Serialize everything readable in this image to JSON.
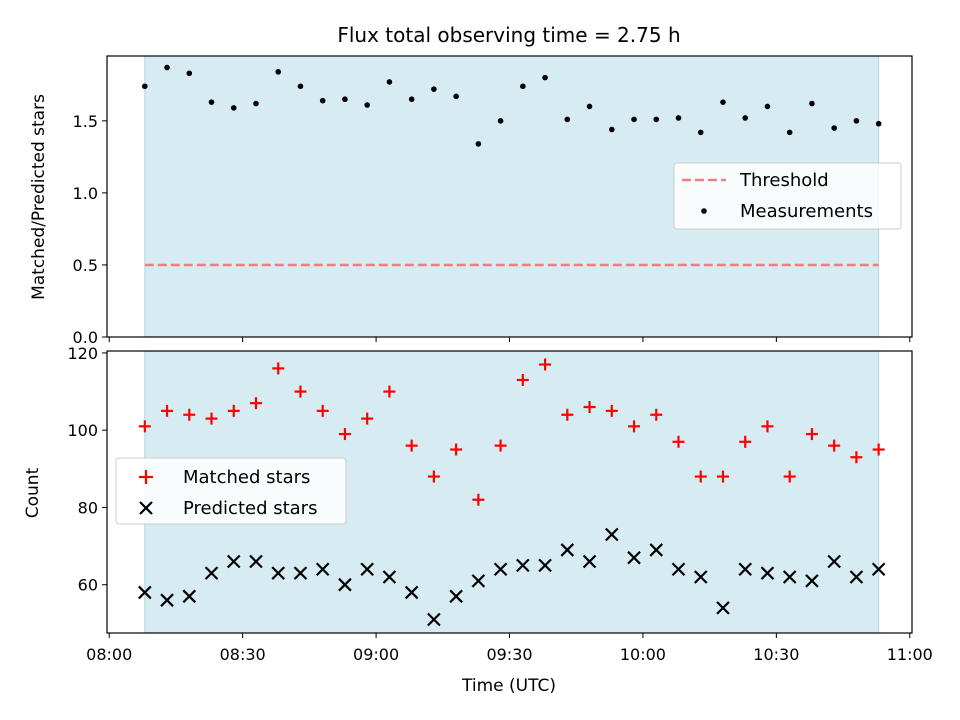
{
  "chart_data": {
    "title": "Flux total observing time = 2.75 h",
    "xlabel": "Time (UTC)",
    "x_ticks": [
      "08:00",
      "08:30",
      "09:00",
      "09:30",
      "10:00",
      "10:30",
      "11:00"
    ],
    "x_tick_minutes": [
      0,
      30,
      60,
      90,
      120,
      150,
      180
    ],
    "x_range_minutes": [
      -0.5,
      180.5
    ],
    "shaded_span_minutes": [
      8,
      173
    ],
    "shade_color": "#add8e6",
    "time_minutes": [
      8,
      13,
      18,
      23,
      28,
      33,
      38,
      43,
      48,
      53,
      58,
      63,
      68,
      73,
      78,
      83,
      88,
      93,
      98,
      103,
      108,
      113,
      118,
      123,
      128,
      133,
      138,
      143,
      148,
      153,
      158,
      163,
      168,
      173
    ],
    "panels": [
      {
        "type": "scatter",
        "ylabel": "Matched/Predicted stars",
        "ylim": [
          0,
          1.95
        ],
        "y_ticks": [
          "0.0",
          "0.5",
          "1.0",
          "1.5"
        ],
        "y_tick_values": [
          0,
          0.5,
          1.0,
          1.5
        ],
        "threshold": {
          "name": "Threshold",
          "value": 0.5,
          "color": "#f08080",
          "style": "dashed"
        },
        "series": [
          {
            "name": "Measurements",
            "marker": "dot",
            "color": "#000000",
            "values": [
              1.74,
              1.87,
              1.83,
              1.63,
              1.59,
              1.62,
              1.84,
              1.74,
              1.64,
              1.65,
              1.61,
              1.77,
              1.65,
              1.72,
              1.67,
              1.34,
              1.5,
              1.74,
              1.8,
              1.51,
              1.6,
              1.44,
              1.51,
              1.51,
              1.52,
              1.42,
              1.63,
              1.52,
              1.6,
              1.42,
              1.62,
              1.45,
              1.5,
              1.48
            ]
          }
        ],
        "legend": {
          "position": "center-right",
          "entries": [
            "Threshold",
            "Measurements"
          ]
        }
      },
      {
        "type": "scatter",
        "ylabel": "Count",
        "ylim": [
          47.5,
          120.5
        ],
        "y_ticks": [
          "60",
          "80",
          "100",
          "120"
        ],
        "y_tick_values": [
          60,
          80,
          100,
          120
        ],
        "series": [
          {
            "name": "Matched stars",
            "marker": "plus",
            "color": "#ff0000",
            "values": [
              101,
              105,
              104,
              103,
              105,
              107,
              116,
              110,
              105,
              99,
              103,
              110,
              96,
              88,
              95,
              82,
              96,
              113,
              117,
              104,
              106,
              105,
              101,
              104,
              97,
              88,
              88,
              97,
              101,
              88,
              99,
              96,
              93,
              95
            ]
          },
          {
            "name": "Predicted stars",
            "marker": "x",
            "color": "#000000",
            "values": [
              58,
              56,
              57,
              63,
              66,
              66,
              63,
              63,
              64,
              60,
              64,
              62,
              58,
              51,
              57,
              61,
              64,
              65,
              65,
              69,
              66,
              73,
              67,
              69,
              64,
              62,
              54,
              64,
              63,
              62,
              61,
              66,
              62,
              64
            ]
          }
        ],
        "legend": {
          "position": "center-left",
          "entries": [
            "Matched stars",
            "Predicted stars"
          ]
        }
      }
    ]
  }
}
